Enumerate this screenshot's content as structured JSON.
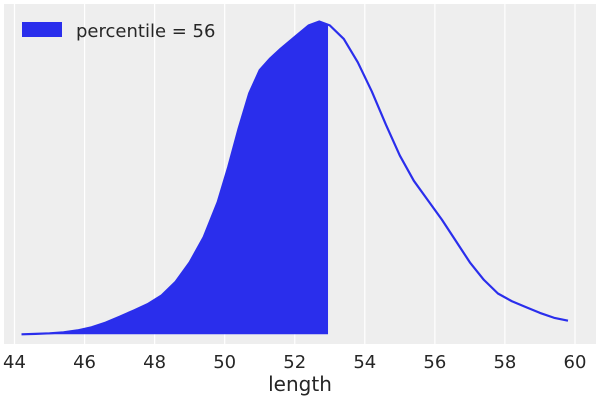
{
  "chart_data": {
    "type": "area",
    "title": "",
    "xlabel": "length",
    "ylabel": "",
    "xlim": [
      43.7,
      60.6
    ],
    "ylim": [
      -0.005,
      0.17
    ],
    "xticks": [
      44,
      46,
      48,
      50,
      52,
      54,
      56,
      58,
      60
    ],
    "grid": true,
    "y_tick_labels_visible": false,
    "legend": {
      "position": "top-left",
      "entries": [
        "percentile = 56"
      ]
    },
    "series": [
      {
        "name": "percentile = 56",
        "kind": "density-line",
        "color": "#2a2eec",
        "x": [
          44.2,
          44.6,
          45.0,
          45.4,
          45.8,
          46.2,
          46.6,
          47.0,
          47.4,
          47.8,
          48.2,
          48.6,
          49.0,
          49.4,
          49.8,
          50.1,
          50.4,
          50.7,
          51.0,
          51.3,
          51.6,
          52.0,
          52.4,
          52.7,
          53.0,
          53.4,
          53.8,
          54.2,
          54.6,
          55.0,
          55.4,
          55.8,
          56.2,
          56.6,
          57.0,
          57.4,
          57.8,
          58.2,
          58.6,
          59.0,
          59.4,
          59.8
        ],
        "y": [
          0.0,
          0.0002,
          0.0005,
          0.001,
          0.002,
          0.0036,
          0.006,
          0.009,
          0.0122,
          0.0155,
          0.02,
          0.027,
          0.037,
          0.05,
          0.068,
          0.086,
          0.106,
          0.124,
          0.136,
          0.142,
          0.147,
          0.153,
          0.159,
          0.161,
          0.159,
          0.152,
          0.14,
          0.125,
          0.108,
          0.092,
          0.079,
          0.069,
          0.059,
          0.048,
          0.037,
          0.028,
          0.021,
          0.017,
          0.014,
          0.011,
          0.0085,
          0.007
        ]
      }
    ],
    "shaded_region": {
      "from": 44.2,
      "to": 52.95,
      "color": "#2a2eec"
    },
    "colors": {
      "background": "#eeeeee",
      "grid": "#ffffff",
      "series": "#2a2eec"
    }
  }
}
